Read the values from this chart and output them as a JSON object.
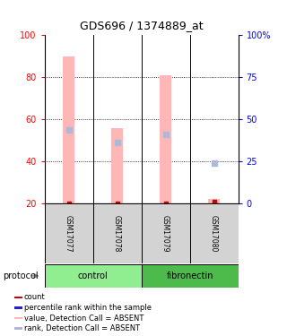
{
  "title": "GDS696 / 1374889_at",
  "samples": [
    "GSM17077",
    "GSM17078",
    "GSM17079",
    "GSM17080"
  ],
  "group_colors": [
    "#90ee90",
    "#4cbb4c"
  ],
  "bar_color_absent": "#ffb6b6",
  "rank_color_absent": "#b0b8d8",
  "rank_color_present": "#2222cc",
  "count_color": "#cc0000",
  "bar_width": 0.25,
  "ylim_left": [
    20,
    100
  ],
  "ylim_right": [
    0,
    100
  ],
  "yticks_left": [
    20,
    40,
    60,
    80,
    100
  ],
  "yticks_right": [
    0,
    25,
    50,
    75,
    100
  ],
  "yticklabels_right": [
    "0",
    "25",
    "50",
    "75",
    "100%"
  ],
  "value_absent": [
    90,
    56,
    81,
    22
  ],
  "rank_absent": [
    55,
    49,
    53,
    39
  ],
  "count_vals": [
    20,
    20,
    20,
    21
  ],
  "legend_items": [
    {
      "color": "#cc0000",
      "label": "count"
    },
    {
      "color": "#2222cc",
      "label": "percentile rank within the sample"
    },
    {
      "color": "#ffb6b6",
      "label": "value, Detection Call = ABSENT"
    },
    {
      "color": "#b0b8d8",
      "label": "rank, Detection Call = ABSENT"
    }
  ]
}
